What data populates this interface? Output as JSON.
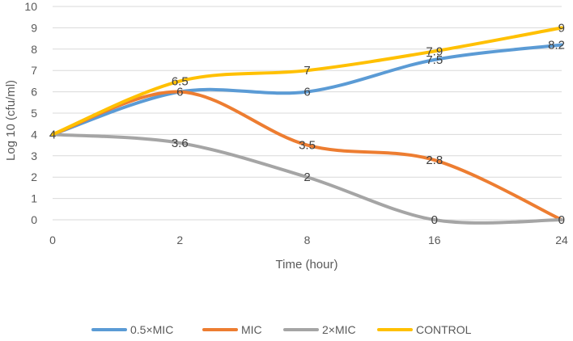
{
  "chart_data": {
    "type": "line",
    "categories": [
      "0",
      "2",
      "8",
      "16",
      "24"
    ],
    "series": [
      {
        "name": "0.5×MIC",
        "color": "#5B9BD5",
        "values": [
          4,
          6,
          6,
          7.5,
          8.2
        ],
        "labels": [
          "4",
          "6",
          "6",
          "7.5",
          "8.2"
        ],
        "label_shown": [
          false,
          false,
          true,
          true,
          true
        ]
      },
      {
        "name": "MIC",
        "color": "#ED7D31",
        "values": [
          4,
          6,
          3.5,
          2.8,
          0
        ],
        "labels": [
          "4",
          "6",
          "3.5",
          "2.8",
          "0"
        ],
        "label_shown": [
          false,
          true,
          true,
          true,
          true
        ]
      },
      {
        "name": "2×MIC",
        "color": "#A5A5A5",
        "values": [
          4,
          3.6,
          2,
          0,
          0
        ],
        "labels": [
          "4",
          "3.6",
          "2",
          "0",
          "0"
        ],
        "label_shown": [
          false,
          true,
          true,
          true,
          false
        ]
      },
      {
        "name": "CONTROL",
        "color": "#FFC000",
        "values": [
          4,
          6.5,
          7,
          7.9,
          9
        ],
        "labels": [
          "4",
          "6.5",
          "7",
          "7.9",
          "9"
        ],
        "label_shown": [
          true,
          true,
          true,
          true,
          true
        ]
      }
    ],
    "title": "",
    "xlabel": "Time (hour)",
    "ylabel": "Log 10 (cfu/ml)",
    "ylim": [
      0,
      10
    ],
    "yticks": [
      "0",
      "1",
      "2",
      "3",
      "4",
      "5",
      "6",
      "7",
      "8",
      "9",
      "10"
    ],
    "grid": true,
    "legend": "bottom",
    "smooth": true
  }
}
